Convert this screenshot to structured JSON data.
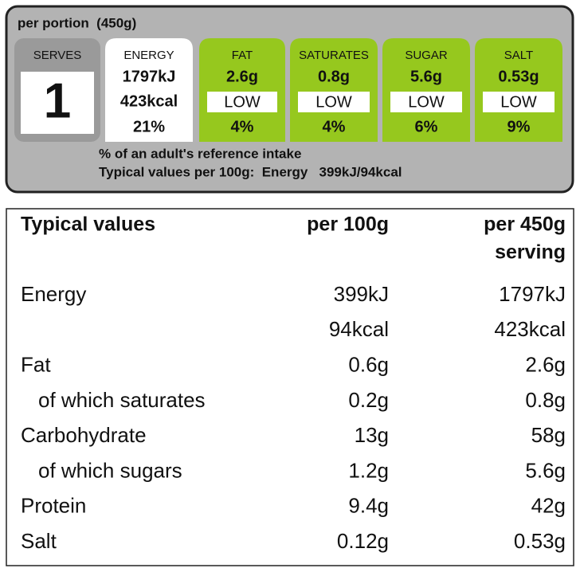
{
  "header": {
    "portion": "per portion  (450g)"
  },
  "serves": {
    "name": "SERVES",
    "value": "1"
  },
  "tiles": [
    {
      "name": "ENERGY",
      "lines": [
        "1797kJ",
        "423kcal"
      ],
      "percent": "21%"
    },
    {
      "name": "FAT",
      "lines": [
        "2.6g"
      ],
      "level": "LOW",
      "percent": "4%"
    },
    {
      "name": "SATURATES",
      "lines": [
        "0.8g"
      ],
      "level": "LOW",
      "percent": "4%"
    },
    {
      "name": "SUGAR",
      "lines": [
        "5.6g"
      ],
      "level": "LOW",
      "percent": "6%"
    },
    {
      "name": "SALT",
      "lines": [
        "0.53g"
      ],
      "level": "LOW",
      "percent": "9%"
    }
  ],
  "footer": {
    "note": "% of an adult's reference intake",
    "typical": "Typical values per 100g:  Energy   399kJ/94kcal"
  },
  "table": {
    "headers": {
      "label": "Typical values",
      "per100": "per 100g",
      "serving": [
        "per 450g",
        "serving"
      ]
    },
    "rows": [
      {
        "label": "Energy",
        "per100": "399kJ",
        "serving": "1797kJ"
      },
      {
        "per100": "94kcal",
        "serving": "423kcal"
      },
      {
        "label": "Fat",
        "per100": "0.6g",
        "serving": "2.6g"
      },
      {
        "label": "of which saturates",
        "indent": true,
        "per100": "0.2g",
        "serving": "0.8g"
      },
      {
        "label": "Carbohydrate",
        "per100": "13g",
        "serving": "58g"
      },
      {
        "label": "of which sugars",
        "indent": true,
        "per100": "1.2g",
        "serving": "5.6g"
      },
      {
        "label": "Protein",
        "per100": "9.4g",
        "serving": "42g"
      },
      {
        "label": "Salt",
        "per100": "0.12g",
        "serving": "0.53g"
      }
    ]
  }
}
